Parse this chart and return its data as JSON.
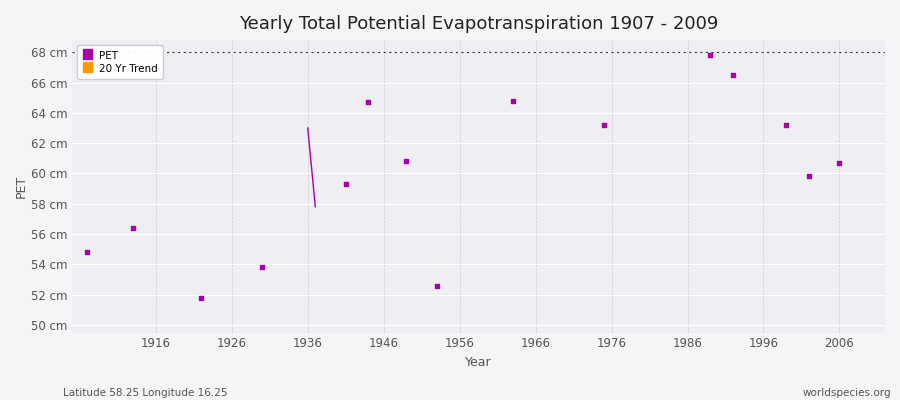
{
  "title": "Yearly Total Potential Evapotranspiration 1907 - 2009",
  "xlabel": "Year",
  "ylabel": "PET",
  "background_color": "#f5f5f8",
  "plot_bg_color": "#eeeef3",
  "ylim": [
    49.5,
    68.8
  ],
  "xlim": [
    1905,
    2012
  ],
  "ytick_labels": [
    "50 cm",
    "52 cm",
    "54 cm",
    "56 cm",
    "58 cm",
    "60 cm",
    "62 cm",
    "64 cm",
    "66 cm",
    "68 cm"
  ],
  "ytick_values": [
    50,
    52,
    54,
    56,
    58,
    60,
    62,
    64,
    66,
    68
  ],
  "xtick_values": [
    1916,
    1926,
    1936,
    1946,
    1956,
    1966,
    1976,
    1986,
    1996,
    2006
  ],
  "pet_x": [
    1907,
    1913,
    1922,
    1930,
    1941,
    1944,
    1949,
    1953,
    1963,
    1975,
    1989,
    1992,
    1999,
    2002,
    2006
  ],
  "pet_y": [
    54.8,
    56.4,
    51.8,
    53.8,
    59.3,
    64.7,
    60.8,
    52.6,
    64.8,
    63.2,
    67.8,
    66.5,
    63.2,
    59.8,
    60.7
  ],
  "pet_color": "#aa00aa",
  "trend_x": [
    1936,
    1937
  ],
  "trend_y": [
    63.0,
    57.8
  ],
  "trend_color": "#aa00aa",
  "hline_y": 68,
  "hline_color": "#333333",
  "legend_pet_color": "#aa00aa",
  "legend_trend_color": "#ff9900",
  "footnote_left": "Latitude 58.25 Longitude 16.25",
  "footnote_right": "worldspecies.org",
  "title_fontsize": 13,
  "label_fontsize": 9,
  "tick_fontsize": 8.5
}
